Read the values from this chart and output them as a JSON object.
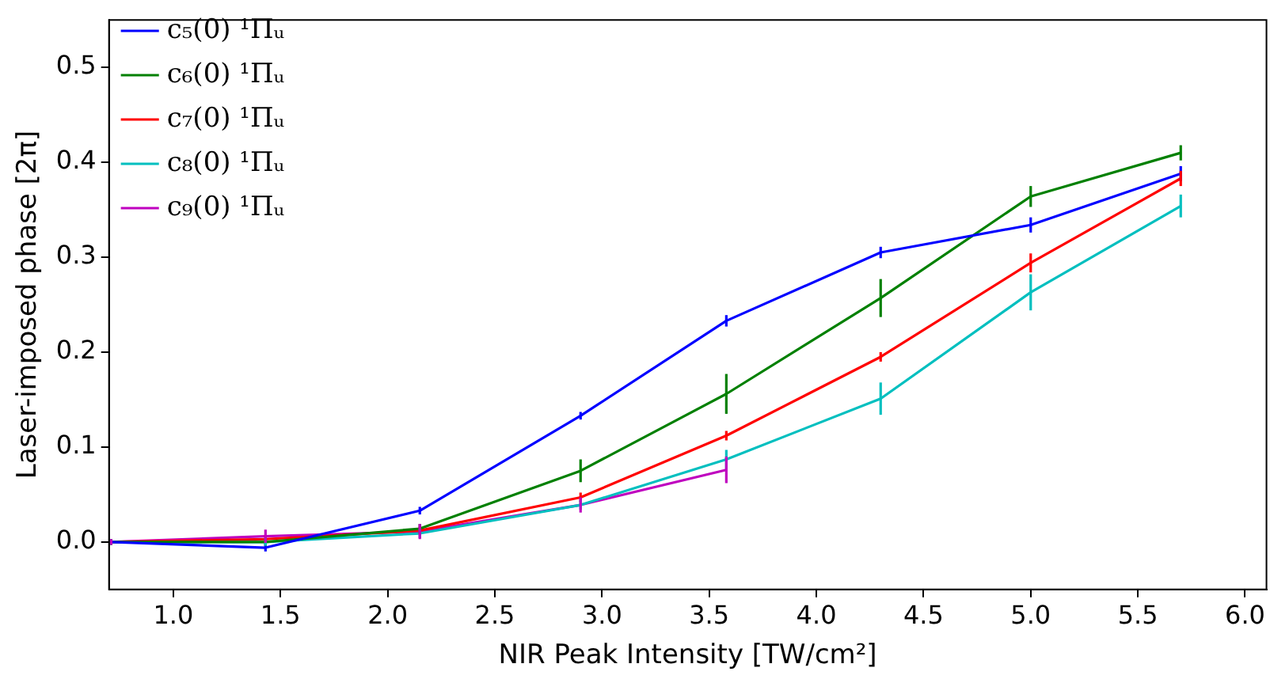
{
  "chart_data": {
    "type": "line",
    "xlabel": "NIR Peak Intensity [TW/cm²]",
    "ylabel": "Laser-imposed phase [2π]",
    "x": [
      0.71,
      1.43,
      2.15,
      2.9,
      3.58,
      4.3,
      5.0,
      5.7
    ],
    "xlim": [
      0.7,
      6.1
    ],
    "xticks": [
      {
        "value": 1,
        "label": "1.0"
      },
      {
        "value": 1.5,
        "label": "1.5"
      },
      {
        "value": 2,
        "label": "2.0"
      },
      {
        "value": 2.5,
        "label": "2.5"
      },
      {
        "value": 3,
        "label": "3.0"
      },
      {
        "value": 3.5,
        "label": "3.5"
      },
      {
        "value": 4,
        "label": "4.0"
      },
      {
        "value": 4.5,
        "label": "4.5"
      },
      {
        "value": 5,
        "label": "5.0"
      },
      {
        "value": 5.5,
        "label": "5.5"
      },
      {
        "value": 6,
        "label": "6.0"
      }
    ],
    "ylim": [
      -0.05,
      0.55
    ],
    "yticks": [
      {
        "value": 0,
        "label": "0.0"
      },
      {
        "value": 0.1,
        "label": "0.1"
      },
      {
        "value": 0.2,
        "label": "0.2"
      },
      {
        "value": 0.3,
        "label": "0.3"
      },
      {
        "value": 0.4,
        "label": "0.4"
      },
      {
        "value": 0.5,
        "label": "0.5"
      }
    ],
    "grid": false,
    "legend": "top left",
    "marker": "none",
    "line_style": "solid",
    "series": [
      {
        "name": "c₅(0) ¹Πᵤ",
        "color": "#0000ff",
        "values": [
          0,
          -0.006,
          0.033,
          0.133,
          0.233,
          0.305,
          0.334,
          0.388
        ],
        "errors": [
          0.003,
          0.004,
          0.004,
          0.004,
          0.006,
          0.006,
          0.008,
          0.008
        ]
      },
      {
        "name": "c₆(0) ¹Πᵤ",
        "color": "#008000",
        "values": [
          0,
          0.0,
          0.014,
          0.075,
          0.156,
          0.257,
          0.364,
          0.41
        ],
        "errors": [
          0.003,
          0.004,
          0.005,
          0.012,
          0.021,
          0.02,
          0.011,
          0.008
        ]
      },
      {
        "name": "c₇(0) ¹Πᵤ",
        "color": "#ff0000",
        "values": [
          0,
          0.003,
          0.012,
          0.047,
          0.112,
          0.195,
          0.294,
          0.383
        ],
        "errors": [
          0.003,
          0.004,
          0.004,
          0.005,
          0.005,
          0.005,
          0.01,
          0.008
        ]
      },
      {
        "name": "c₈(0) ¹Πᵤ",
        "color": "#00bfbf",
        "values": [
          0,
          0.0,
          0.009,
          0.039,
          0.087,
          0.151,
          0.263,
          0.354
        ],
        "errors": [
          0.003,
          0.004,
          0.005,
          0.005,
          0.01,
          0.017,
          0.019,
          0.012
        ]
      },
      {
        "name": "c₉(0) ¹Πᵤ",
        "color": "#bf00bf",
        "values": [
          0,
          0.006,
          0.011,
          0.039,
          0.076,
          null,
          null,
          null
        ],
        "errors": [
          0.003,
          0.007,
          0.008,
          0.008,
          0.014,
          null,
          null,
          null
        ]
      }
    ]
  }
}
